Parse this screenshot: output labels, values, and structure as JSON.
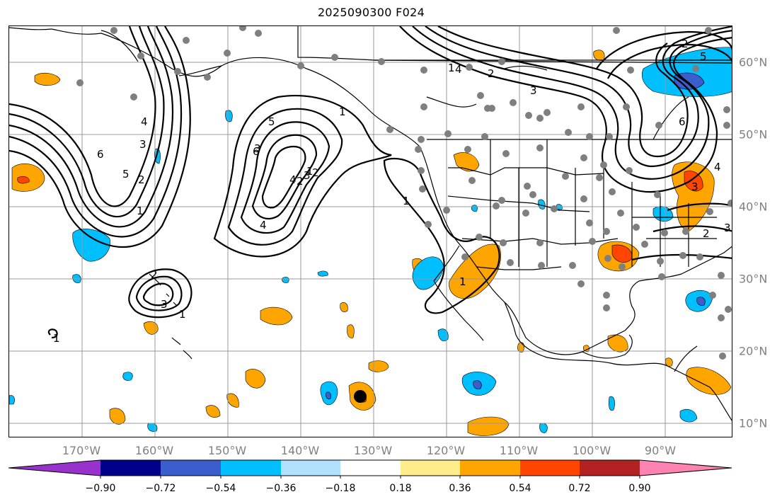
{
  "title": "2025090300 F024",
  "lon_labels": [
    "170°W",
    "160°W",
    "150°W",
    "140°W",
    "130°W",
    "120°W",
    "110°W",
    "100°W",
    "90°W"
  ],
  "lat_labels": [
    "60°N",
    "50°N",
    "40°N",
    "30°N",
    "20°N",
    "10°N"
  ],
  "colorbar": {
    "labels": [
      "−0.90",
      "−0.72",
      "−0.54",
      "−0.36",
      "−0.18",
      "0.18",
      "0.36",
      "0.54",
      "0.72",
      "0.90"
    ],
    "colors": [
      "#9932cc",
      "#00008b",
      "#3a5fcd",
      "#00bfff",
      "#b0e2ff",
      "#ffffff",
      "#ffec8b",
      "#ffa500",
      "#ff4500",
      "#b22222",
      "#ff83b0"
    ]
  },
  "contour_labels": [
    "1",
    "2",
    "3",
    "4",
    "5",
    "6",
    "1",
    "2",
    "3",
    "4",
    "1",
    "2",
    "3",
    "4",
    "5",
    "6",
    "1",
    "2",
    "3",
    "1",
    "2",
    "3",
    "4",
    "5",
    "6",
    "1",
    "2",
    "3",
    "4",
    "1",
    "2",
    "3",
    "1"
  ],
  "storm_marker": "tropical-cyclone-position"
}
